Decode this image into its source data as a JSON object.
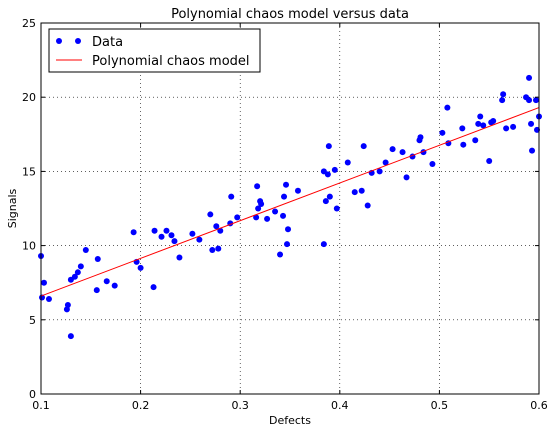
{
  "chart_data": {
    "type": "scatter",
    "title": "Polynomial chaos model versus data",
    "xlabel": "Defects",
    "ylabel": "Signals",
    "xlim": [
      0.1,
      0.6
    ],
    "ylim": [
      0,
      25
    ],
    "xticks": [
      0.1,
      0.2,
      0.3,
      0.4,
      0.5,
      0.6
    ],
    "xtick_labels": [
      "0.1",
      "0.2",
      "0.3",
      "0.4",
      "0.5",
      "0.6"
    ],
    "yticks": [
      0,
      5,
      10,
      15,
      20,
      25
    ],
    "ytick_labels": [
      "0",
      "5",
      "10",
      "15",
      "20",
      "25"
    ],
    "grid": true,
    "legend_position": "top-left",
    "series": [
      {
        "name": "Data",
        "kind": "scatter",
        "color": "#0000ff",
        "points": [
          [
            0.1,
            9.3
          ],
          [
            0.103,
            7.5
          ],
          [
            0.101,
            6.5
          ],
          [
            0.108,
            6.4
          ],
          [
            0.126,
            5.7
          ],
          [
            0.127,
            6.0
          ],
          [
            0.13,
            3.9
          ],
          [
            0.13,
            7.7
          ],
          [
            0.134,
            7.9
          ],
          [
            0.137,
            8.2
          ],
          [
            0.14,
            8.6
          ],
          [
            0.145,
            9.7
          ],
          [
            0.156,
            7.0
          ],
          [
            0.157,
            9.1
          ],
          [
            0.166,
            7.6
          ],
          [
            0.174,
            7.3
          ],
          [
            0.193,
            10.9
          ],
          [
            0.196,
            8.9
          ],
          [
            0.2,
            8.5
          ],
          [
            0.213,
            7.2
          ],
          [
            0.214,
            11.0
          ],
          [
            0.221,
            10.6
          ],
          [
            0.226,
            11.0
          ],
          [
            0.231,
            10.7
          ],
          [
            0.234,
            10.3
          ],
          [
            0.239,
            9.2
          ],
          [
            0.252,
            10.8
          ],
          [
            0.259,
            10.4
          ],
          [
            0.27,
            12.1
          ],
          [
            0.272,
            9.7
          ],
          [
            0.276,
            11.3
          ],
          [
            0.278,
            9.8
          ],
          [
            0.28,
            11.0
          ],
          [
            0.29,
            11.5
          ],
          [
            0.291,
            13.3
          ],
          [
            0.297,
            11.9
          ],
          [
            0.316,
            11.9
          ],
          [
            0.317,
            14.0
          ],
          [
            0.318,
            12.5
          ],
          [
            0.32,
            13.0
          ],
          [
            0.321,
            12.8
          ],
          [
            0.327,
            11.8
          ],
          [
            0.335,
            12.3
          ],
          [
            0.34,
            9.4
          ],
          [
            0.343,
            12.0
          ],
          [
            0.344,
            13.3
          ],
          [
            0.346,
            14.1
          ],
          [
            0.347,
            10.1
          ],
          [
            0.348,
            11.1
          ],
          [
            0.358,
            13.7
          ],
          [
            0.384,
            10.1
          ],
          [
            0.384,
            15.0
          ],
          [
            0.386,
            13.0
          ],
          [
            0.388,
            14.8
          ],
          [
            0.389,
            16.7
          ],
          [
            0.39,
            13.3
          ],
          [
            0.395,
            15.1
          ],
          [
            0.397,
            12.5
          ],
          [
            0.408,
            15.6
          ],
          [
            0.415,
            13.6
          ],
          [
            0.422,
            13.7
          ],
          [
            0.424,
            16.7
          ],
          [
            0.428,
            12.7
          ],
          [
            0.432,
            14.9
          ],
          [
            0.44,
            15.0
          ],
          [
            0.446,
            15.6
          ],
          [
            0.453,
            16.5
          ],
          [
            0.463,
            16.3
          ],
          [
            0.467,
            14.6
          ],
          [
            0.473,
            16.0
          ],
          [
            0.48,
            17.1
          ],
          [
            0.481,
            17.3
          ],
          [
            0.484,
            16.3
          ],
          [
            0.493,
            15.5
          ],
          [
            0.503,
            17.6
          ],
          [
            0.508,
            19.3
          ],
          [
            0.509,
            16.9
          ],
          [
            0.523,
            17.9
          ],
          [
            0.524,
            16.8
          ],
          [
            0.536,
            17.1
          ],
          [
            0.539,
            18.2
          ],
          [
            0.541,
            18.7
          ],
          [
            0.544,
            18.1
          ],
          [
            0.55,
            15.7
          ],
          [
            0.552,
            18.3
          ],
          [
            0.554,
            18.4
          ],
          [
            0.563,
            19.8
          ],
          [
            0.564,
            20.2
          ],
          [
            0.567,
            17.9
          ],
          [
            0.574,
            18.0
          ],
          [
            0.587,
            20.0
          ],
          [
            0.59,
            19.8
          ],
          [
            0.59,
            21.3
          ],
          [
            0.592,
            18.2
          ],
          [
            0.593,
            16.4
          ],
          [
            0.597,
            19.8
          ],
          [
            0.598,
            17.8
          ],
          [
            0.6,
            18.7
          ]
        ]
      },
      {
        "name": "Polynomial chaos model",
        "kind": "line",
        "color": "#ff0000",
        "points": [
          [
            0.1,
            6.6
          ],
          [
            0.6,
            19.3
          ]
        ]
      }
    ]
  }
}
